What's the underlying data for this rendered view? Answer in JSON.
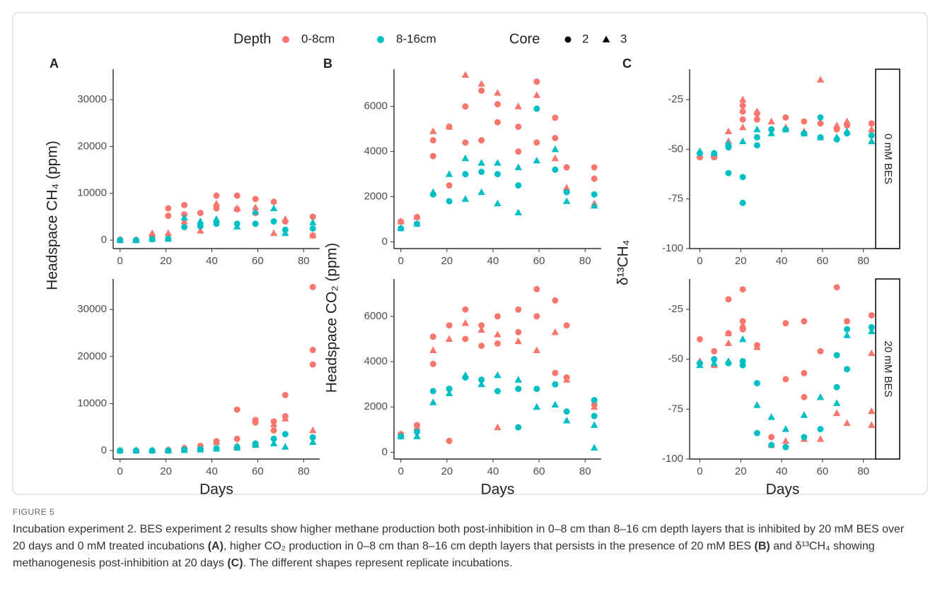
{
  "legend": {
    "depth_title": "Depth",
    "depth": [
      {
        "label": "0-8cm",
        "color": "#F8766D"
      },
      {
        "label": "8-16cm",
        "color": "#00BFC4"
      }
    ],
    "core_title": "Core",
    "core": [
      {
        "label": "2",
        "marker": "circle"
      },
      {
        "label": "3",
        "marker": "triangle"
      }
    ]
  },
  "chart_data": [
    {
      "type": "scatter",
      "panel_label": "A",
      "ylabel": "Headspace CH₄ (ppm)",
      "xlim": [
        -3,
        87
      ],
      "ylim": [
        -1800,
        36500
      ],
      "xticks": [
        0,
        20,
        40,
        60,
        80
      ],
      "yticks": [
        0,
        10000,
        20000,
        30000
      ],
      "series": [
        {
          "color": "#F8766D",
          "marker": "circle",
          "x": [
            0,
            7,
            14,
            21,
            21,
            28,
            28,
            35,
            42,
            42,
            51,
            51,
            59,
            59,
            67,
            72,
            84,
            84
          ],
          "y": [
            100,
            50,
            800,
            6800,
            5200,
            7500,
            5500,
            5800,
            9500,
            6800,
            9500,
            6600,
            8800,
            5800,
            8200,
            4000,
            5000,
            1000
          ]
        },
        {
          "color": "#F8766D",
          "marker": "triangle",
          "x": [
            0,
            7,
            14,
            21,
            28,
            35,
            42,
            51,
            59,
            67,
            72,
            84
          ],
          "y": [
            100,
            100,
            1500,
            1500,
            4000,
            2000,
            7800,
            6800,
            7000,
            1500,
            4500,
            1000
          ]
        },
        {
          "color": "#00BFC4",
          "marker": "circle",
          "x": [
            0,
            7,
            14,
            21,
            28,
            35,
            42,
            51,
            59,
            67,
            72,
            84
          ],
          "y": [
            0,
            0,
            200,
            300,
            2800,
            3000,
            3500,
            3500,
            3500,
            4000,
            2200,
            2500
          ]
        },
        {
          "color": "#00BFC4",
          "marker": "triangle",
          "x": [
            0,
            7,
            14,
            21,
            28,
            35,
            42,
            51,
            59,
            67,
            72,
            84
          ],
          "y": [
            0,
            0,
            300,
            300,
            4800,
            4000,
            4500,
            2900,
            6000,
            6800,
            1500,
            3800
          ]
        }
      ]
    },
    {
      "type": "scatter",
      "xlabel": "Days",
      "xlim": [
        -3,
        87
      ],
      "ylim": [
        -1800,
        36500
      ],
      "xticks": [
        0,
        20,
        40,
        60,
        80
      ],
      "yticks": [
        0,
        10000,
        20000,
        30000
      ],
      "series": [
        {
          "color": "#F8766D",
          "marker": "circle",
          "x": [
            0,
            7,
            14,
            21,
            28,
            35,
            42,
            51,
            51,
            59,
            59,
            67,
            67,
            72,
            72,
            84,
            84,
            84
          ],
          "y": [
            0,
            0,
            0,
            100,
            500,
            1000,
            2000,
            8700,
            2500,
            6500,
            6000,
            6200,
            4300,
            7300,
            11800,
            34800,
            21400,
            18300
          ]
        },
        {
          "color": "#F8766D",
          "marker": "triangle",
          "x": [
            0,
            7,
            14,
            21,
            28,
            35,
            42,
            51,
            59,
            67,
            72,
            84
          ],
          "y": [
            0,
            0,
            0,
            200,
            600,
            900,
            1800,
            1000,
            1500,
            5600,
            6800,
            4300
          ]
        },
        {
          "color": "#00BFC4",
          "marker": "circle",
          "x": [
            0,
            7,
            14,
            21,
            28,
            35,
            42,
            51,
            59,
            67,
            72,
            84
          ],
          "y": [
            0,
            0,
            0,
            0,
            200,
            300,
            500,
            800,
            1500,
            2500,
            3500,
            2800
          ]
        },
        {
          "color": "#00BFC4",
          "marker": "triangle",
          "x": [
            0,
            7,
            14,
            21,
            28,
            35,
            42,
            51,
            59,
            67,
            72,
            84
          ],
          "y": [
            0,
            0,
            0,
            0,
            100,
            200,
            400,
            600,
            1200,
            1500,
            800,
            1800
          ]
        }
      ]
    },
    {
      "type": "scatter",
      "panel_label": "B",
      "xlim": [
        -3,
        87
      ],
      "ylim": [
        -300,
        7650
      ],
      "xticks": [
        0,
        20,
        40,
        60,
        80
      ],
      "yticks": [
        0,
        2000,
        4000,
        6000
      ],
      "series": [
        {
          "color": "#F8766D",
          "marker": "circle",
          "x": [
            0,
            7,
            14,
            14,
            21,
            21,
            28,
            28,
            35,
            35,
            42,
            42,
            51,
            51,
            59,
            59,
            67,
            67,
            72,
            84,
            84
          ],
          "y": [
            900,
            1100,
            3800,
            4500,
            5100,
            2500,
            6000,
            4400,
            6700,
            4500,
            6100,
            5300,
            5100,
            4000,
            7100,
            4400,
            5500,
            4600,
            3300,
            3300,
            2800
          ]
        },
        {
          "color": "#F8766D",
          "marker": "triangle",
          "x": [
            0,
            7,
            14,
            21,
            28,
            35,
            42,
            51,
            59,
            67,
            72,
            84
          ],
          "y": [
            900,
            1100,
            4900,
            5100,
            7400,
            7000,
            6600,
            6000,
            6500,
            3700,
            2400,
            1700
          ]
        },
        {
          "color": "#00BFC4",
          "marker": "circle",
          "x": [
            0,
            7,
            14,
            21,
            28,
            35,
            42,
            51,
            59,
            67,
            72,
            84
          ],
          "y": [
            600,
            800,
            2100,
            1800,
            3000,
            3100,
            3000,
            2500,
            5900,
            3200,
            2200,
            2100
          ]
        },
        {
          "color": "#00BFC4",
          "marker": "triangle",
          "x": [
            0,
            7,
            14,
            21,
            28,
            28,
            35,
            35,
            42,
            42,
            51,
            51,
            59,
            67,
            72,
            84
          ],
          "y": [
            600,
            800,
            2200,
            3000,
            3700,
            1900,
            3500,
            2200,
            3500,
            1700,
            3300,
            1300,
            3600,
            4100,
            1800,
            1600
          ]
        }
      ]
    },
    {
      "type": "scatter",
      "ylabel": "Headspace CO₂ (ppm)",
      "xlabel": "Days",
      "xlim": [
        -3,
        87
      ],
      "ylim": [
        -300,
        7650
      ],
      "xticks": [
        0,
        20,
        40,
        60,
        80
      ],
      "yticks": [
        0,
        2000,
        4000,
        6000
      ],
      "series": [
        {
          "color": "#F8766D",
          "marker": "circle",
          "x": [
            0,
            7,
            14,
            14,
            21,
            21,
            28,
            28,
            35,
            35,
            42,
            42,
            51,
            51,
            59,
            59,
            67,
            67,
            72,
            72,
            84
          ],
          "y": [
            800,
            1200,
            5100,
            3900,
            5600,
            500,
            6300,
            5000,
            5600,
            4700,
            6000,
            4800,
            6300,
            5300,
            7200,
            6000,
            6700,
            3500,
            5600,
            3300,
            2100
          ]
        },
        {
          "color": "#F8766D",
          "marker": "triangle",
          "x": [
            0,
            7,
            14,
            21,
            28,
            35,
            42,
            42,
            51,
            59,
            67,
            72,
            84
          ],
          "y": [
            800,
            1100,
            4500,
            5000,
            5700,
            5400,
            5200,
            1100,
            4900,
            4500,
            5300,
            3200,
            2000
          ]
        },
        {
          "color": "#00BFC4",
          "marker": "circle",
          "x": [
            0,
            7,
            14,
            21,
            28,
            35,
            42,
            51,
            51,
            59,
            67,
            72,
            84,
            84
          ],
          "y": [
            700,
            900,
            2700,
            2800,
            3300,
            3200,
            2700,
            2800,
            1100,
            2800,
            3000,
            1800,
            2300,
            1600
          ]
        },
        {
          "color": "#00BFC4",
          "marker": "triangle",
          "x": [
            0,
            7,
            14,
            21,
            28,
            35,
            42,
            51,
            59,
            67,
            72,
            84,
            84
          ],
          "y": [
            700,
            700,
            2200,
            2600,
            3400,
            3000,
            3400,
            3200,
            2000,
            2100,
            1400,
            1200,
            200
          ]
        }
      ]
    },
    {
      "type": "scatter",
      "panel_label": "C",
      "ylabel": "δ¹³CH₄",
      "facet": "0 mM BES",
      "xlim": [
        -5,
        86
      ],
      "ylim": [
        -100,
        -9.7
      ],
      "xticks": [
        0,
        20,
        40,
        60,
        80
      ],
      "yticks": [
        -100,
        -75,
        -50,
        -25
      ],
      "series": [
        {
          "color": "#F8766D",
          "marker": "circle",
          "x": [
            0,
            7,
            21,
            21,
            21,
            28,
            28,
            35,
            42,
            51,
            59,
            67,
            72,
            84
          ],
          "y": [
            -54,
            -54,
            -28,
            -31,
            -35,
            -32,
            -35,
            -40,
            -34,
            -36,
            -37,
            -40,
            -38,
            -37
          ]
        },
        {
          "color": "#F8766D",
          "marker": "triangle",
          "x": [
            0,
            7,
            14,
            14,
            21,
            21,
            28,
            35,
            42,
            51,
            59,
            67,
            72,
            84
          ],
          "y": [
            -53,
            -53,
            -41,
            -46,
            -25,
            -39,
            -31,
            -36,
            -39,
            -41,
            -15,
            -38,
            -36,
            -40
          ]
        },
        {
          "color": "#00BFC4",
          "marker": "circle",
          "x": [
            0,
            7,
            14,
            14,
            21,
            21,
            28,
            28,
            35,
            42,
            51,
            59,
            59,
            67,
            72,
            84
          ],
          "y": [
            -52,
            -52,
            -49,
            -62,
            -64,
            -77,
            -48,
            -44,
            -40,
            -40,
            -42,
            -34,
            -44,
            -45,
            -42,
            -43
          ]
        },
        {
          "color": "#00BFC4",
          "marker": "triangle",
          "x": [
            0,
            7,
            14,
            21,
            28,
            35,
            42,
            51,
            59,
            67,
            72,
            84
          ],
          "y": [
            -51,
            -52,
            -47,
            -46,
            -40,
            -42,
            -40,
            -42,
            -44,
            -44,
            -41,
            -46
          ]
        }
      ]
    },
    {
      "type": "scatter",
      "xlabel": "Days",
      "facet": "20 mM BES",
      "xlim": [
        -5,
        86
      ],
      "ylim": [
        -100,
        -9.8
      ],
      "xticks": [
        0,
        20,
        40,
        60,
        80
      ],
      "yticks": [
        -100,
        -75,
        -50,
        -25
      ],
      "series": [
        {
          "color": "#F8766D",
          "marker": "circle",
          "x": [
            0,
            7,
            14,
            14,
            21,
            21,
            21,
            28,
            35,
            42,
            42,
            51,
            51,
            51,
            59,
            67,
            72,
            84
          ],
          "y": [
            -40,
            -46,
            -20,
            -37,
            -15,
            -31,
            -35,
            -43,
            -89,
            -32,
            -60,
            -31,
            -57,
            -69,
            -46,
            -14,
            -31,
            -28
          ]
        },
        {
          "color": "#F8766D",
          "marker": "triangle",
          "x": [
            0,
            7,
            14,
            14,
            21,
            28,
            35,
            42,
            51,
            59,
            67,
            72,
            84,
            84,
            84
          ],
          "y": [
            -51,
            -53,
            -37,
            -42,
            -33,
            -44,
            -93,
            -91,
            -90,
            -90,
            -77,
            -82,
            -47,
            -76,
            -83
          ]
        },
        {
          "color": "#00BFC4",
          "marker": "circle",
          "x": [
            0,
            7,
            14,
            21,
            21,
            28,
            28,
            35,
            42,
            51,
            59,
            67,
            67,
            72,
            72,
            84
          ],
          "y": [
            -52,
            -50,
            -52,
            -51,
            -53,
            -62,
            -87,
            -93,
            -94,
            -89,
            -85,
            -48,
            -64,
            -35,
            -55,
            -34
          ]
        },
        {
          "color": "#00BFC4",
          "marker": "triangle",
          "x": [
            0,
            7,
            14,
            21,
            28,
            35,
            42,
            51,
            59,
            67,
            72,
            84
          ],
          "y": [
            -53,
            -52,
            -51,
            -40,
            -73,
            -79,
            -85,
            -78,
            -69,
            -72,
            -38,
            -36
          ]
        }
      ]
    }
  ],
  "figure_label": "FIGURE 5",
  "caption": [
    "Incubation experiment 2. BES experiment 2 results show higher methane production both post-inhibition in 0–8 cm than 8–16 cm depth layers that is inhibited by 20 mM BES over 20 days and 0 mM treated incubations ",
    "(A)",
    ", higher CO₂ production in 0–8 cm than 8–16 cm depth layers that persists in the presence of 20 mM BES ",
    "(B)",
    " and δ¹³CH₄ showing methanogenesis post-inhibition at 20 days ",
    "(C)",
    ". The different shapes represent replicate incubations."
  ]
}
